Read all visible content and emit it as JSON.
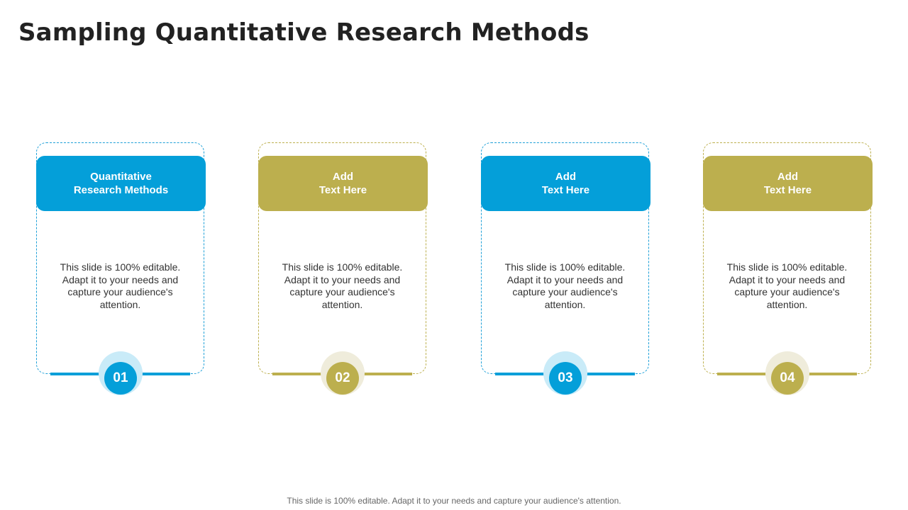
{
  "slide": {
    "title": "Sampling Quantitative Research Methods",
    "footer": "This slide is 100% editable. Adapt it to your needs and capture your audience's attention."
  },
  "colors": {
    "blue": "#049FD9",
    "olive": "#BCAF4E",
    "blue_halo": "#C9EBF8",
    "olive_halo": "#EFECDB"
  },
  "cards": [
    {
      "title": "Quantitative\nResearch Methods",
      "body": "This slide is 100% editable. Adapt it to your needs and capture your audience's attention.",
      "number": "01"
    },
    {
      "title": "Add\nText Here",
      "body": "This slide is 100% editable. Adapt it to your needs and capture your audience's attention.",
      "number": "02"
    },
    {
      "title": "Add\nText Here",
      "body": "This slide is 100% editable. Adapt it to your needs and capture your audience's attention.",
      "number": "03"
    },
    {
      "title": "Add\nText Here",
      "body": "This slide is 100% editable. Adapt it to your needs and capture your audience's attention.",
      "number": "04"
    }
  ]
}
